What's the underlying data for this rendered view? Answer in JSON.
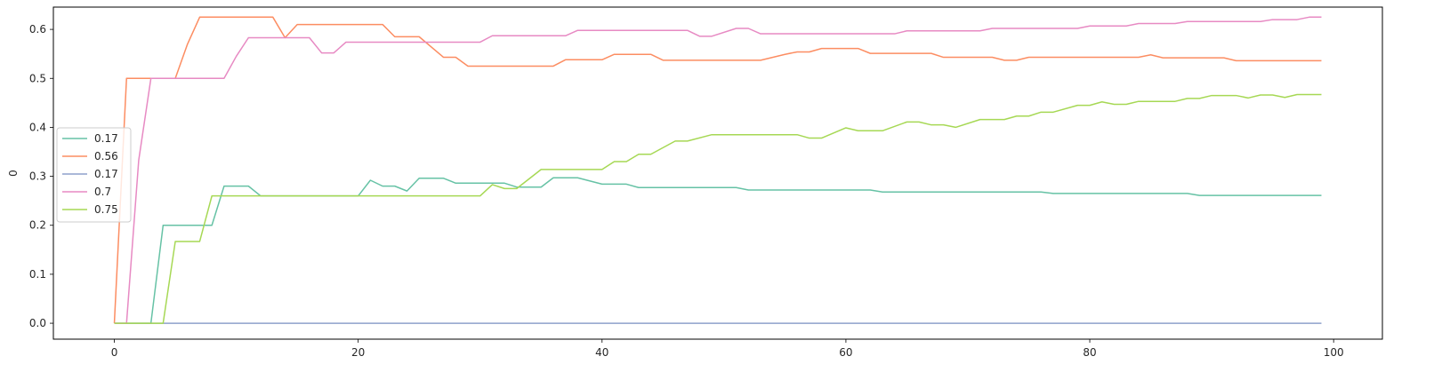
{
  "chart_data": {
    "type": "line",
    "title": "",
    "xlabel": "",
    "ylabel": "0",
    "xlim": [
      -5,
      104
    ],
    "ylim": [
      -0.0325,
      0.6455
    ],
    "xticks": [
      0,
      20,
      40,
      60,
      80,
      100
    ],
    "yticks": [
      0.0,
      0.1,
      0.2,
      0.3,
      0.4,
      0.5,
      0.6
    ],
    "xtick_labels": [
      "0",
      "20",
      "40",
      "60",
      "80",
      "100"
    ],
    "ytick_labels": [
      "0.0",
      "0.1",
      "0.2",
      "0.3",
      "0.4",
      "0.5",
      "0.6"
    ],
    "grid": false,
    "legend_position": "center-left",
    "series": [
      {
        "name": "0.17",
        "color": "#66c2a5",
        "points": [
          [
            0,
            0
          ],
          [
            3,
            0
          ],
          [
            4,
            0.2
          ],
          [
            8,
            0.2
          ],
          [
            9,
            0.28
          ],
          [
            11,
            0.28
          ],
          [
            12,
            0.26
          ],
          [
            20,
            0.26
          ],
          [
            21,
            0.292
          ],
          [
            22,
            0.28
          ],
          [
            23,
            0.28
          ],
          [
            24,
            0.27
          ],
          [
            25,
            0.296
          ],
          [
            27,
            0.296
          ],
          [
            28,
            0.286
          ],
          [
            32,
            0.286
          ],
          [
            33,
            0.278
          ],
          [
            35,
            0.278
          ],
          [
            36,
            0.297
          ],
          [
            38,
            0.297
          ],
          [
            40,
            0.284
          ],
          [
            42,
            0.284
          ],
          [
            43,
            0.277
          ],
          [
            51,
            0.277
          ],
          [
            52,
            0.272
          ],
          [
            62,
            0.272
          ],
          [
            63,
            0.268
          ],
          [
            76,
            0.268
          ],
          [
            77,
            0.265
          ],
          [
            88,
            0.265
          ],
          [
            89,
            0.261
          ],
          [
            99,
            0.261
          ]
        ]
      },
      {
        "name": "0.56",
        "color": "#fc8d62",
        "points": [
          [
            0,
            0
          ],
          [
            1,
            0.5
          ],
          [
            5,
            0.5
          ],
          [
            6,
            0.57
          ],
          [
            7,
            0.625
          ],
          [
            13,
            0.625
          ],
          [
            14,
            0.583
          ],
          [
            15,
            0.61
          ],
          [
            22,
            0.61
          ],
          [
            23,
            0.585
          ],
          [
            25,
            0.585
          ],
          [
            27,
            0.543
          ],
          [
            28,
            0.543
          ],
          [
            29,
            0.525
          ],
          [
            36,
            0.525
          ],
          [
            37,
            0.538
          ],
          [
            40,
            0.538
          ],
          [
            41,
            0.549
          ],
          [
            44,
            0.549
          ],
          [
            45,
            0.537
          ],
          [
            53,
            0.537
          ],
          [
            55,
            0.549
          ],
          [
            56,
            0.554
          ],
          [
            57,
            0.554
          ],
          [
            58,
            0.561
          ],
          [
            61,
            0.561
          ],
          [
            62,
            0.551
          ],
          [
            67,
            0.551
          ],
          [
            68,
            0.543
          ],
          [
            72,
            0.543
          ],
          [
            73,
            0.537
          ],
          [
            74,
            0.537
          ],
          [
            75,
            0.543
          ],
          [
            84,
            0.543
          ],
          [
            85,
            0.548
          ],
          [
            86,
            0.542
          ],
          [
            91,
            0.542
          ],
          [
            92,
            0.536
          ],
          [
            99,
            0.536
          ]
        ]
      },
      {
        "name": "0.17",
        "color": "#8da0cb",
        "points": [
          [
            0,
            0
          ],
          [
            99,
            0
          ]
        ]
      },
      {
        "name": "0.7",
        "color": "#e78ac3",
        "points": [
          [
            0,
            0
          ],
          [
            1,
            0
          ],
          [
            2,
            0.333
          ],
          [
            3,
            0.5
          ],
          [
            9,
            0.5
          ],
          [
            10,
            0.545
          ],
          [
            11,
            0.583
          ],
          [
            16,
            0.583
          ],
          [
            17,
            0.552
          ],
          [
            18,
            0.552
          ],
          [
            19,
            0.574
          ],
          [
            30,
            0.574
          ],
          [
            31,
            0.587
          ],
          [
            37,
            0.587
          ],
          [
            38,
            0.598
          ],
          [
            47,
            0.598
          ],
          [
            48,
            0.586
          ],
          [
            49,
            0.586
          ],
          [
            51,
            0.602
          ],
          [
            52,
            0.602
          ],
          [
            53,
            0.591
          ],
          [
            64,
            0.591
          ],
          [
            65,
            0.597
          ],
          [
            71,
            0.597
          ],
          [
            72,
            0.602
          ],
          [
            79,
            0.602
          ],
          [
            80,
            0.607
          ],
          [
            83,
            0.607
          ],
          [
            84,
            0.612
          ],
          [
            87,
            0.612
          ],
          [
            88,
            0.616
          ],
          [
            94,
            0.616
          ],
          [
            95,
            0.62
          ],
          [
            97,
            0.62
          ],
          [
            98,
            0.625
          ],
          [
            99,
            0.625
          ]
        ]
      },
      {
        "name": "0.75",
        "color": "#a6d854",
        "points": [
          [
            0,
            0
          ],
          [
            4,
            0
          ],
          [
            5,
            0.167
          ],
          [
            7,
            0.167
          ],
          [
            8,
            0.26
          ],
          [
            30,
            0.26
          ],
          [
            31,
            0.283
          ],
          [
            32,
            0.275
          ],
          [
            33,
            0.275
          ],
          [
            35,
            0.314
          ],
          [
            40,
            0.314
          ],
          [
            41,
            0.33
          ],
          [
            42,
            0.33
          ],
          [
            43,
            0.345
          ],
          [
            44,
            0.345
          ],
          [
            46,
            0.372
          ],
          [
            47,
            0.372
          ],
          [
            49,
            0.385
          ],
          [
            56,
            0.385
          ],
          [
            57,
            0.378
          ],
          [
            58,
            0.378
          ],
          [
            60,
            0.399
          ],
          [
            61,
            0.393
          ],
          [
            63,
            0.393
          ],
          [
            65,
            0.411
          ],
          [
            66,
            0.411
          ],
          [
            67,
            0.405
          ],
          [
            68,
            0.405
          ],
          [
            69,
            0.4
          ],
          [
            71,
            0.416
          ],
          [
            73,
            0.416
          ],
          [
            74,
            0.423
          ],
          [
            75,
            0.423
          ],
          [
            76,
            0.431
          ],
          [
            77,
            0.431
          ],
          [
            79,
            0.445
          ],
          [
            80,
            0.445
          ],
          [
            81,
            0.452
          ],
          [
            82,
            0.447
          ],
          [
            83,
            0.447
          ],
          [
            84,
            0.453
          ],
          [
            87,
            0.453
          ],
          [
            88,
            0.459
          ],
          [
            89,
            0.459
          ],
          [
            90,
            0.465
          ],
          [
            92,
            0.465
          ],
          [
            93,
            0.46
          ],
          [
            94,
            0.466
          ],
          [
            95,
            0.466
          ],
          [
            96,
            0.461
          ],
          [
            97,
            0.467
          ],
          [
            99,
            0.467
          ]
        ]
      }
    ]
  }
}
